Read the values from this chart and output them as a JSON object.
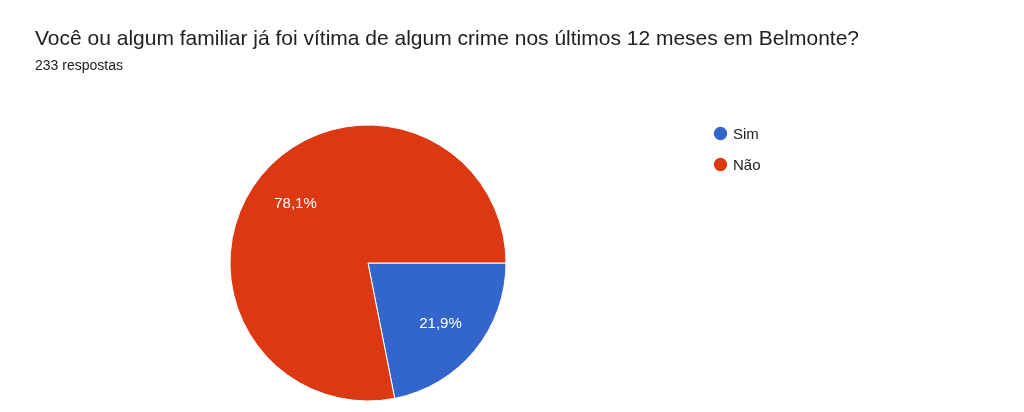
{
  "chart_data": {
    "type": "pie",
    "title": "Você ou algum familiar já foi vítima de algum crime nos últimos 12 meses em Belmonte?",
    "subtitle": "233 respostas",
    "categories": [
      "Sim",
      "Não"
    ],
    "values": [
      21.9,
      78.1
    ],
    "colors": [
      "#3366cc",
      "#dc3912"
    ],
    "value_labels": [
      "21,9%",
      "78,1%"
    ],
    "legend": "top right"
  }
}
